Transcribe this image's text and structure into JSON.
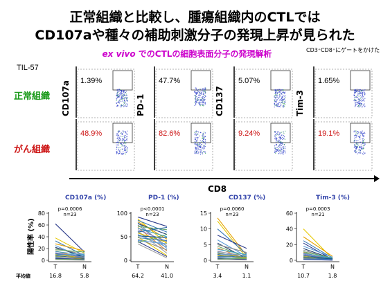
{
  "title_line1": "正常組織と比較し、腫瘍組織内のCTLでは",
  "title_line2": "CD107aや種々の補助刺激分子の発現上昇が見られた",
  "subtitle_italic": "ex vivo",
  "subtitle_rest": " でのCTLの細胞表面分子の発現解析",
  "note": "CD3⁺CD8⁺にゲートをかけた",
  "sample_id": "TIL-57",
  "row_labels": {
    "normal": "正常組織",
    "cancer": "がん組織"
  },
  "flow_axis_y": [
    "CD107a",
    "PD-1",
    "CD137",
    "Tim-3"
  ],
  "flow_axis_x": "CD8",
  "flow_percent_normal": [
    "1.39%",
    "47.7%",
    "5.07%",
    "1.65%"
  ],
  "flow_percent_cancer": [
    "48.9%",
    "82.6%",
    "9.24%",
    "19.1%"
  ],
  "row_mean_label": "平均値",
  "ylabel": "陽性率 (%)",
  "colors": {
    "normal_text": "#1a9a1a",
    "cancer_text": "#cc1111",
    "subtitle": "#cc00cc",
    "panel_title": "#3344aa"
  },
  "chart_data": [
    {
      "type": "line",
      "title": "CD107a (%)",
      "ylabel": "陽性率 (%)",
      "categories": [
        "T",
        "N"
      ],
      "ylim": [
        0,
        80
      ],
      "yticks": [
        0,
        20,
        40,
        60,
        80
      ],
      "p_value": "p=0.0006",
      "n": "n=23",
      "means": [
        16.8,
        5.8
      ],
      "series": [
        {
          "values": [
            62,
            14
          ],
          "color": "#2a3a8a"
        },
        {
          "values": [
            38,
            12
          ],
          "color": "#e6c800"
        },
        {
          "values": [
            33,
            8
          ],
          "color": "#3a7ab8"
        },
        {
          "values": [
            28,
            16
          ],
          "color": "#e6a000"
        },
        {
          "values": [
            25,
            4
          ],
          "color": "#5a9ad8"
        },
        {
          "values": [
            22,
            6
          ],
          "color": "#1a3a6a"
        },
        {
          "values": [
            20,
            10
          ],
          "color": "#888888"
        },
        {
          "values": [
            18,
            14
          ],
          "color": "#6aaa6a"
        },
        {
          "values": [
            16,
            3
          ],
          "color": "#d88a3a"
        },
        {
          "values": [
            15,
            9
          ],
          "color": "#3aa0c8"
        },
        {
          "values": [
            13,
            5
          ],
          "color": "#7a7acc"
        },
        {
          "values": [
            12,
            2
          ],
          "color": "#a0a0a0"
        },
        {
          "values": [
            11,
            7
          ],
          "color": "#2a6aa8"
        },
        {
          "values": [
            10,
            4
          ],
          "color": "#c8b000"
        },
        {
          "values": [
            9,
            11
          ],
          "color": "#6a9acc"
        },
        {
          "values": [
            8,
            3
          ],
          "color": "#1a5a8a"
        },
        {
          "values": [
            7,
            2
          ],
          "color": "#e6c800"
        },
        {
          "values": [
            6,
            4
          ],
          "color": "#3a7ab8"
        },
        {
          "values": [
            5,
            6
          ],
          "color": "#888888"
        },
        {
          "values": [
            4,
            1
          ],
          "color": "#5a9ad8"
        },
        {
          "values": [
            3,
            2
          ],
          "color": "#2a3a8a"
        },
        {
          "values": [
            2,
            1
          ],
          "color": "#6aaa6a"
        },
        {
          "values": [
            1,
            0
          ],
          "color": "#a0a0a0"
        }
      ]
    },
    {
      "type": "line",
      "title": "PD-1 (%)",
      "categories": [
        "T",
        "N"
      ],
      "ylim": [
        0,
        100
      ],
      "yticks": [
        0,
        50,
        100
      ],
      "p_value": "p<0.0001",
      "n": "n=23",
      "means": [
        64.2,
        41.0
      ],
      "series": [
        {
          "values": [
            92,
            72
          ],
          "color": "#2a3a8a"
        },
        {
          "values": [
            88,
            35
          ],
          "color": "#e6c800"
        },
        {
          "values": [
            85,
            60
          ],
          "color": "#3a7ab8"
        },
        {
          "values": [
            82,
            45
          ],
          "color": "#e6a000"
        },
        {
          "values": [
            80,
            25
          ],
          "color": "#5a9ad8"
        },
        {
          "values": [
            78,
            55
          ],
          "color": "#1a3a6a"
        },
        {
          "values": [
            75,
            30
          ],
          "color": "#888888"
        },
        {
          "values": [
            72,
            65
          ],
          "color": "#6aaa6a"
        },
        {
          "values": [
            70,
            20
          ],
          "color": "#d88a3a"
        },
        {
          "values": [
            68,
            50
          ],
          "color": "#3aa0c8"
        },
        {
          "values": [
            65,
            40
          ],
          "color": "#7a7acc"
        },
        {
          "values": [
            62,
            15
          ],
          "color": "#a0a0a0"
        },
        {
          "values": [
            60,
            70
          ],
          "color": "#2a6aa8"
        },
        {
          "values": [
            58,
            38
          ],
          "color": "#c8b000"
        },
        {
          "values": [
            55,
            28
          ],
          "color": "#6a9acc"
        },
        {
          "values": [
            52,
            48
          ],
          "color": "#1a5a8a"
        },
        {
          "values": [
            50,
            10
          ],
          "color": "#e6c800"
        },
        {
          "values": [
            48,
            42
          ],
          "color": "#3a7ab8"
        },
        {
          "values": [
            45,
            22
          ],
          "color": "#888888"
        },
        {
          "values": [
            42,
            35
          ],
          "color": "#5a9ad8"
        },
        {
          "values": [
            40,
            8
          ],
          "color": "#2a3a8a"
        },
        {
          "values": [
            38,
            55
          ],
          "color": "#6aaa6a"
        },
        {
          "values": [
            35,
            5
          ],
          "color": "#a0a0a0"
        }
      ]
    },
    {
      "type": "line",
      "title": "CD137 (%)",
      "categories": [
        "T",
        "N"
      ],
      "ylim": [
        0,
        15
      ],
      "yticks": [
        0,
        5,
        10,
        15
      ],
      "p_value": "p=0.0060",
      "n": "n=23",
      "means": [
        3.4,
        1.1
      ],
      "series": [
        {
          "values": [
            13.5,
            1.5
          ],
          "color": "#e6a000"
        },
        {
          "values": [
            12.5,
            0.8
          ],
          "color": "#e6c800"
        },
        {
          "values": [
            10,
            2
          ],
          "color": "#3a7ab8"
        },
        {
          "values": [
            8,
            3.8
          ],
          "color": "#2a3a8a"
        },
        {
          "values": [
            6.5,
            1.2
          ],
          "color": "#5a9ad8"
        },
        {
          "values": [
            5.5,
            0.5
          ],
          "color": "#1a3a6a"
        },
        {
          "values": [
            5,
            2.5
          ],
          "color": "#888888"
        },
        {
          "values": [
            4.5,
            1
          ],
          "color": "#6aaa6a"
        },
        {
          "values": [
            4,
            0.3
          ],
          "color": "#d88a3a"
        },
        {
          "values": [
            3.5,
            1.8
          ],
          "color": "#3aa0c8"
        },
        {
          "values": [
            3,
            0.6
          ],
          "color": "#7a7acc"
        },
        {
          "values": [
            2.8,
            1.4
          ],
          "color": "#a0a0a0"
        },
        {
          "values": [
            2.5,
            0.2
          ],
          "color": "#2a6aa8"
        },
        {
          "values": [
            2.2,
            0.9
          ],
          "color": "#c8b000"
        },
        {
          "values": [
            2,
            1.6
          ],
          "color": "#6a9acc"
        },
        {
          "values": [
            1.8,
            0.4
          ],
          "color": "#1a5a8a"
        },
        {
          "values": [
            1.5,
            0.7
          ],
          "color": "#e6c800"
        },
        {
          "values": [
            1.2,
            1.1
          ],
          "color": "#3a7ab8"
        },
        {
          "values": [
            1,
            0.3
          ],
          "color": "#888888"
        },
        {
          "values": [
            0.8,
            0.5
          ],
          "color": "#5a9ad8"
        },
        {
          "values": [
            0.6,
            0.2
          ],
          "color": "#2a3a8a"
        },
        {
          "values": [
            0.4,
            0.6
          ],
          "color": "#6aaa6a"
        },
        {
          "values": [
            0.2,
            0.1
          ],
          "color": "#a0a0a0"
        }
      ]
    },
    {
      "type": "line",
      "title": "Tim-3 (%)",
      "categories": [
        "T",
        "N"
      ],
      "ylim": [
        0,
        60
      ],
      "yticks": [
        0,
        20,
        40,
        60
      ],
      "p_value": "p=0.0003",
      "n": "n=21",
      "means": [
        10.7,
        1.8
      ],
      "series": [
        {
          "values": [
            40,
            2
          ],
          "color": "#e6c800"
        },
        {
          "values": [
            30,
            5
          ],
          "color": "#e6a000"
        },
        {
          "values": [
            25,
            3
          ],
          "color": "#3a7ab8"
        },
        {
          "values": [
            22,
            1
          ],
          "color": "#2a3a8a"
        },
        {
          "values": [
            18,
            4
          ],
          "color": "#5a9ad8"
        },
        {
          "values": [
            15,
            2
          ],
          "color": "#1a3a6a"
        },
        {
          "values": [
            13,
            1.5
          ],
          "color": "#888888"
        },
        {
          "values": [
            11,
            3
          ],
          "color": "#6aaa6a"
        },
        {
          "values": [
            10,
            0.5
          ],
          "color": "#d88a3a"
        },
        {
          "values": [
            9,
            2.5
          ],
          "color": "#3aa0c8"
        },
        {
          "values": [
            8,
            1
          ],
          "color": "#7a7acc"
        },
        {
          "values": [
            7,
            0.8
          ],
          "color": "#a0a0a0"
        },
        {
          "values": [
            6,
            2
          ],
          "color": "#2a6aa8"
        },
        {
          "values": [
            5,
            1.2
          ],
          "color": "#c8b000"
        },
        {
          "values": [
            4.5,
            0.6
          ],
          "color": "#6a9acc"
        },
        {
          "values": [
            4,
            1.8
          ],
          "color": "#1a5a8a"
        },
        {
          "values": [
            3,
            0.4
          ],
          "color": "#e6c800"
        },
        {
          "values": [
            2.5,
            1
          ],
          "color": "#3a7ab8"
        },
        {
          "values": [
            2,
            0.3
          ],
          "color": "#888888"
        },
        {
          "values": [
            1.5,
            0.7
          ],
          "color": "#5a9ad8"
        },
        {
          "values": [
            1,
            0.2
          ],
          "color": "#2a3a8a"
        }
      ]
    }
  ]
}
